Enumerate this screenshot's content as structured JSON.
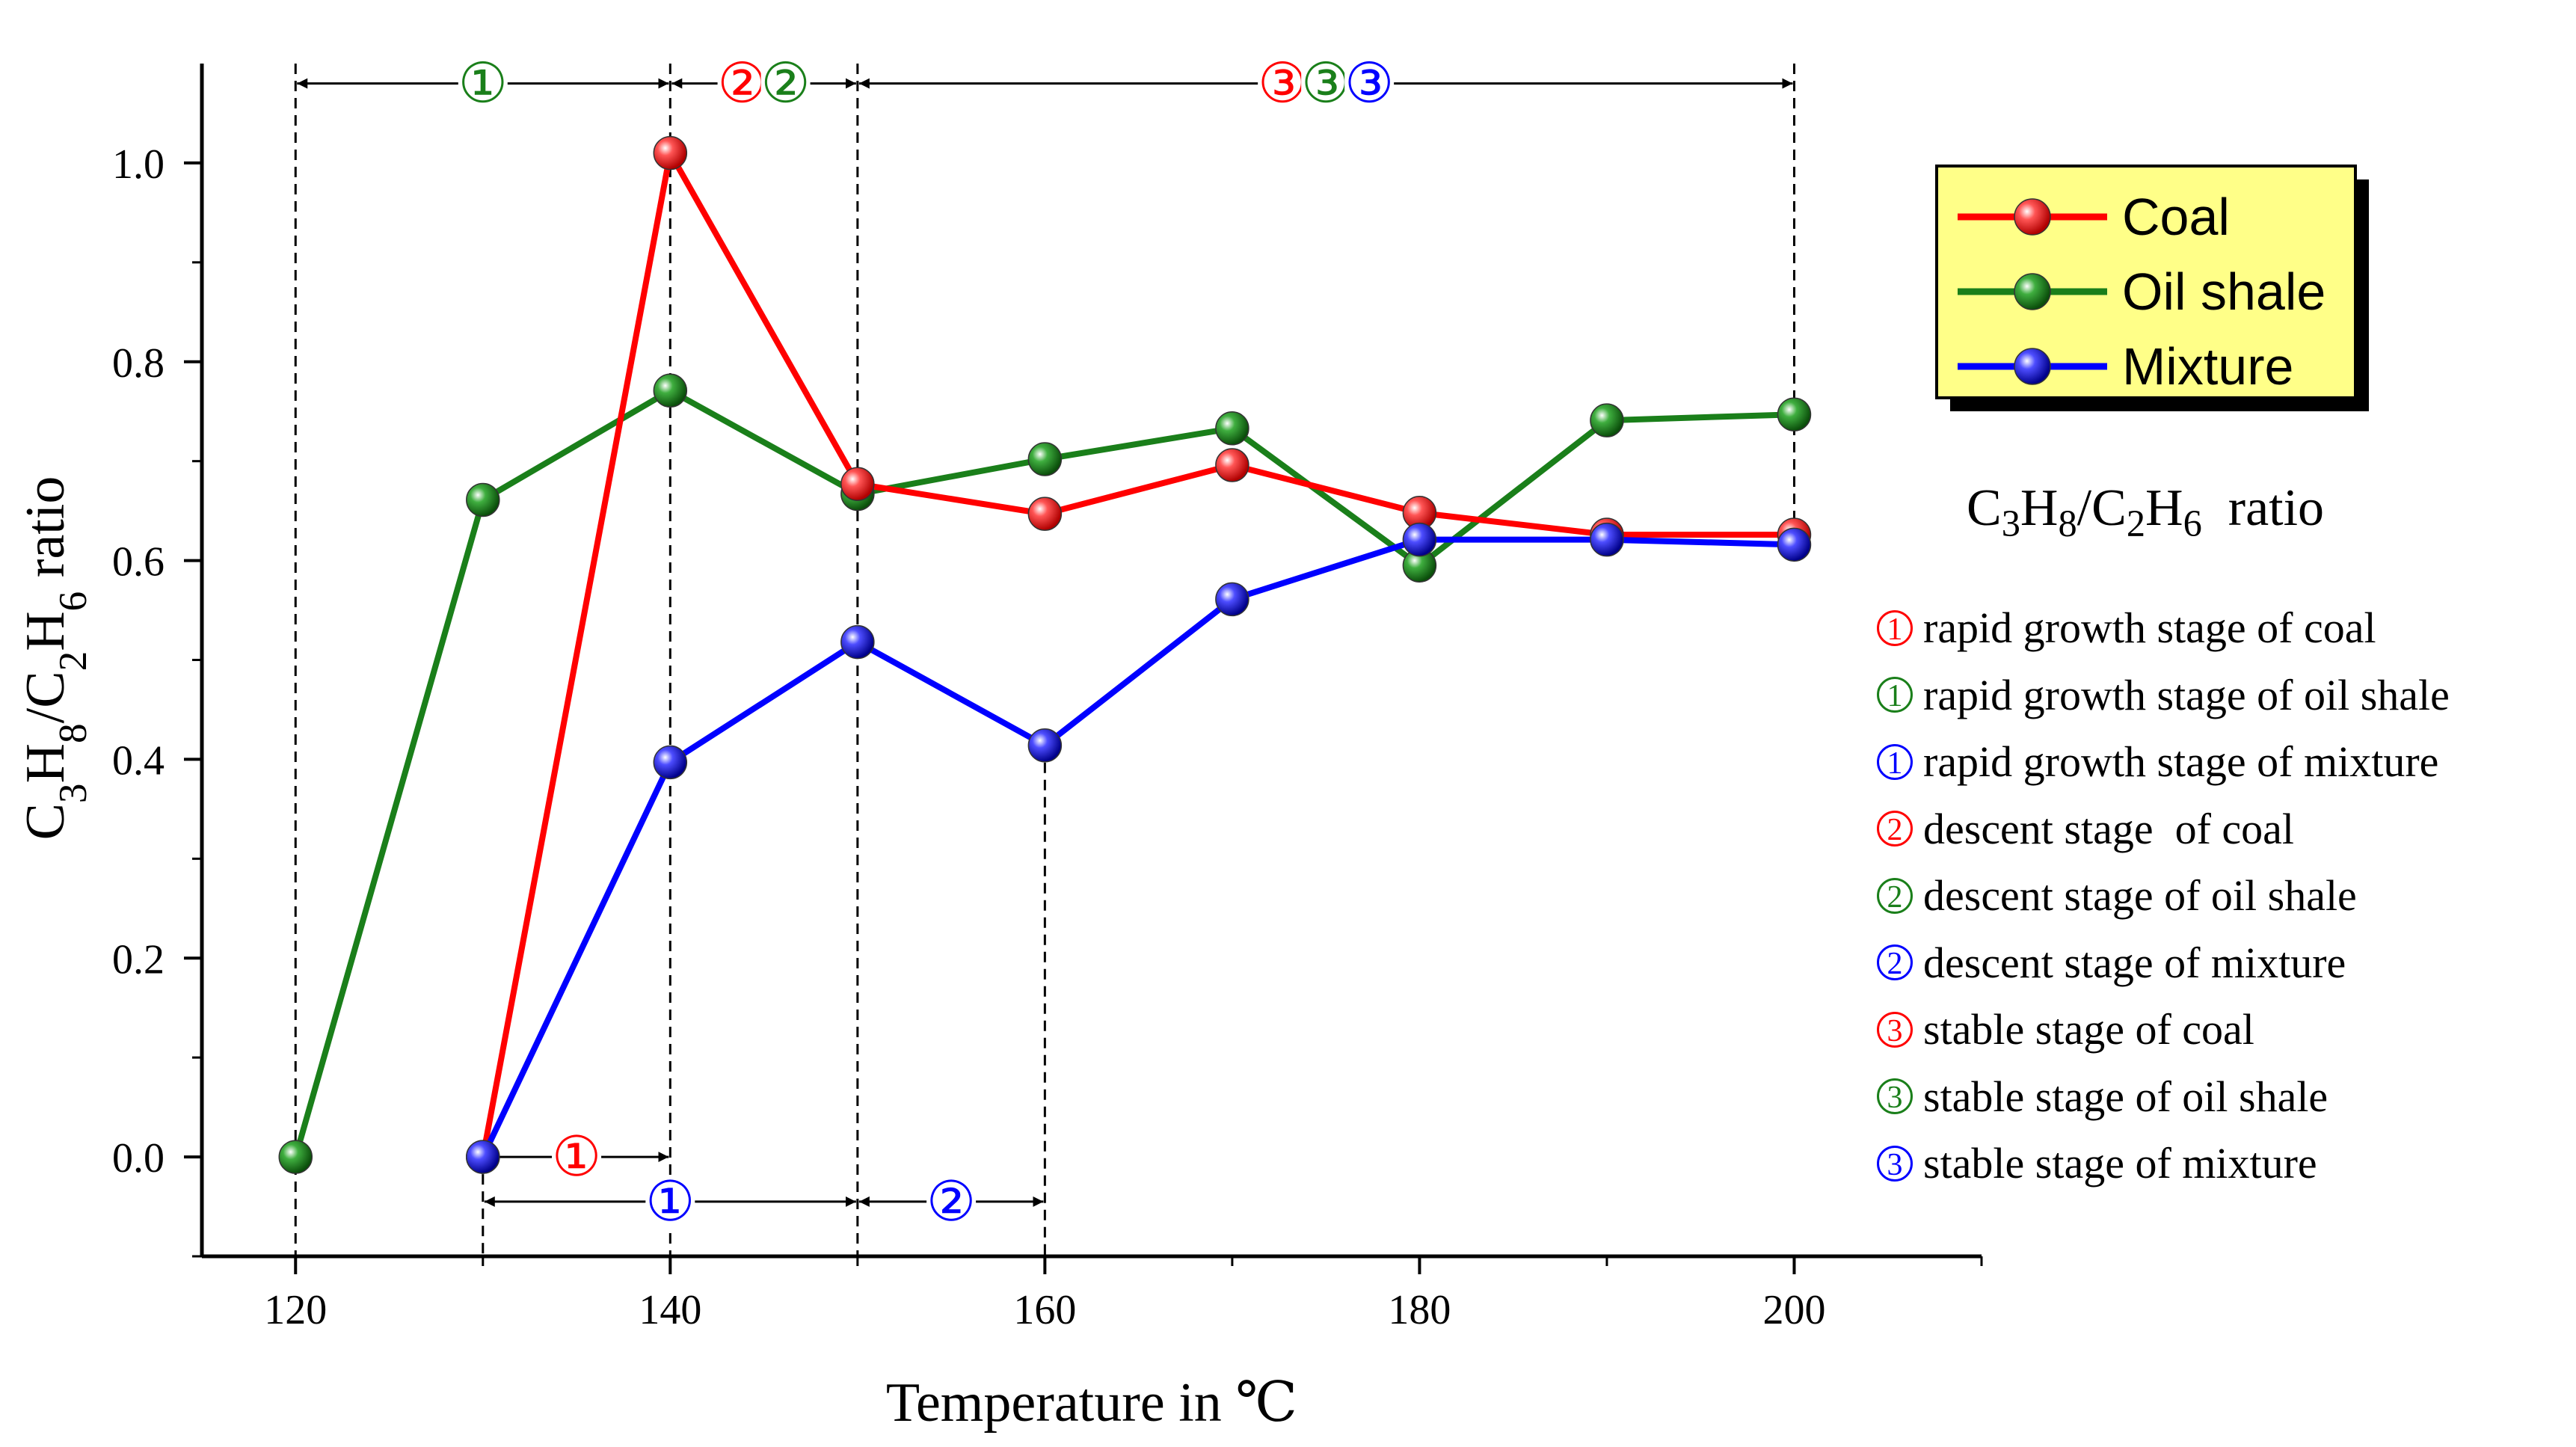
{
  "chart_data": {
    "type": "line",
    "xlabel": "Temperature in ℃",
    "ylabel": {
      "parts": [
        {
          "t": "C",
          "sub": false
        },
        {
          "t": "3",
          "sub": true
        },
        {
          "t": "H",
          "sub": false
        },
        {
          "t": "8",
          "sub": true
        },
        {
          "t": "/C",
          "sub": false
        },
        {
          "t": "2",
          "sub": true
        },
        {
          "t": "H",
          "sub": false
        },
        {
          "t": "6",
          "sub": true
        },
        {
          "t": "  ratio",
          "sub": false
        }
      ]
    },
    "xlim": [
      115,
      210
    ],
    "ylim": [
      -0.1,
      1.1
    ],
    "xticks": [
      120,
      140,
      160,
      180,
      200
    ],
    "yticks": [
      0.0,
      0.2,
      0.4,
      0.6,
      0.8,
      1.0
    ],
    "xtick_labels": [
      "120",
      "140",
      "160",
      "180",
      "200"
    ],
    "ytick_labels": [
      "0.0",
      "0.2",
      "0.4",
      "0.6",
      "0.8",
      "1.0"
    ],
    "series": [
      {
        "name": "Coal",
        "color": "#ff0000",
        "x": [
          130,
          140,
          150,
          160,
          170,
          180,
          190,
          200
        ],
        "y": [
          0.0,
          1.01,
          0.677,
          0.647,
          0.696,
          0.648,
          0.626,
          0.626
        ]
      },
      {
        "name": "Oil shale",
        "color": "#1a7f1a",
        "x": [
          120,
          130,
          140,
          150,
          160,
          170,
          180,
          190,
          200
        ],
        "y": [
          0.0,
          0.661,
          0.771,
          0.667,
          0.702,
          0.733,
          0.595,
          0.741,
          0.747
        ]
      },
      {
        "name": "Mixture",
        "color": "#0000ff",
        "x": [
          130,
          140,
          150,
          160,
          170,
          180,
          190,
          200
        ],
        "y": [
          0.0,
          0.397,
          0.518,
          0.414,
          0.561,
          0.621,
          0.621,
          0.616
        ]
      }
    ],
    "vlines": [
      {
        "x": 120,
        "y_from": -0.1,
        "y_to": 1.1
      },
      {
        "x": 130,
        "y_from": -0.1,
        "y_to": 0.0
      },
      {
        "x": 140,
        "y_from": -0.1,
        "y_to": 1.1
      },
      {
        "x": 150,
        "y_from": -0.1,
        "y_to": 1.1
      },
      {
        "x": 160,
        "y_from": -0.1,
        "y_to": 0.414
      },
      {
        "x": 200,
        "y_from": 0.626,
        "y_to": 1.1
      }
    ],
    "spans": [
      {
        "x1": 120,
        "x2": 140,
        "y": 1.08,
        "labels": [
          {
            "text": "①",
            "color": "#1a7f1a"
          }
        ]
      },
      {
        "x1": 140,
        "x2": 150,
        "y": 1.08,
        "labels": [
          {
            "text": "②",
            "color": "#ff0000"
          },
          {
            "text": "②",
            "color": "#1a7f1a"
          }
        ]
      },
      {
        "x1": 150,
        "x2": 200,
        "y": 1.08,
        "labels": [
          {
            "text": "③",
            "color": "#ff0000"
          },
          {
            "text": "③",
            "color": "#1a7f1a"
          },
          {
            "text": "③",
            "color": "#0000ff"
          }
        ]
      },
      {
        "x1": 130,
        "x2": 140,
        "y": 0.0,
        "labels": [
          {
            "text": "①",
            "color": "#ff0000"
          }
        ]
      },
      {
        "x1": 130,
        "x2": 150,
        "y": -0.045,
        "labels": [
          {
            "text": "①",
            "color": "#0000ff"
          }
        ]
      },
      {
        "x1": 150,
        "x2": 160,
        "y": -0.045,
        "labels": [
          {
            "text": "②",
            "color": "#0000ff"
          }
        ]
      }
    ],
    "legend": {
      "position": "top-right",
      "background": "#ffff88",
      "entries": [
        "Coal",
        "Oil shale",
        "Mixture"
      ]
    },
    "legend_title": {
      "parts": [
        {
          "t": "C",
          "sub": false
        },
        {
          "t": "3",
          "sub": true
        },
        {
          "t": "H",
          "sub": false
        },
        {
          "t": "8",
          "sub": true
        },
        {
          "t": "/C",
          "sub": false
        },
        {
          "t": "2",
          "sub": true
        },
        {
          "t": "H",
          "sub": false
        },
        {
          "t": "6",
          "sub": true
        },
        {
          "t": "  ratio",
          "sub": false
        }
      ]
    },
    "stage_descriptions": [
      {
        "num": "①",
        "color": "#ff0000",
        "text": "rapid growth stage of coal"
      },
      {
        "num": "①",
        "color": "#1a7f1a",
        "text": "rapid growth stage of oil shale"
      },
      {
        "num": "①",
        "color": "#0000ff",
        "text": "rapid growth stage of mixture"
      },
      {
        "num": "②",
        "color": "#ff0000",
        "text": "descent stage  of coal"
      },
      {
        "num": "②",
        "color": "#1a7f1a",
        "text": "descent stage of oil shale"
      },
      {
        "num": "②",
        "color": "#0000ff",
        "text": "descent stage of mixture"
      },
      {
        "num": "③",
        "color": "#ff0000",
        "text": "stable stage of coal"
      },
      {
        "num": "③",
        "color": "#1a7f1a",
        "text": "stable stage of oil shale"
      },
      {
        "num": "③",
        "color": "#0000ff",
        "text": "stable stage of mixture"
      }
    ]
  }
}
